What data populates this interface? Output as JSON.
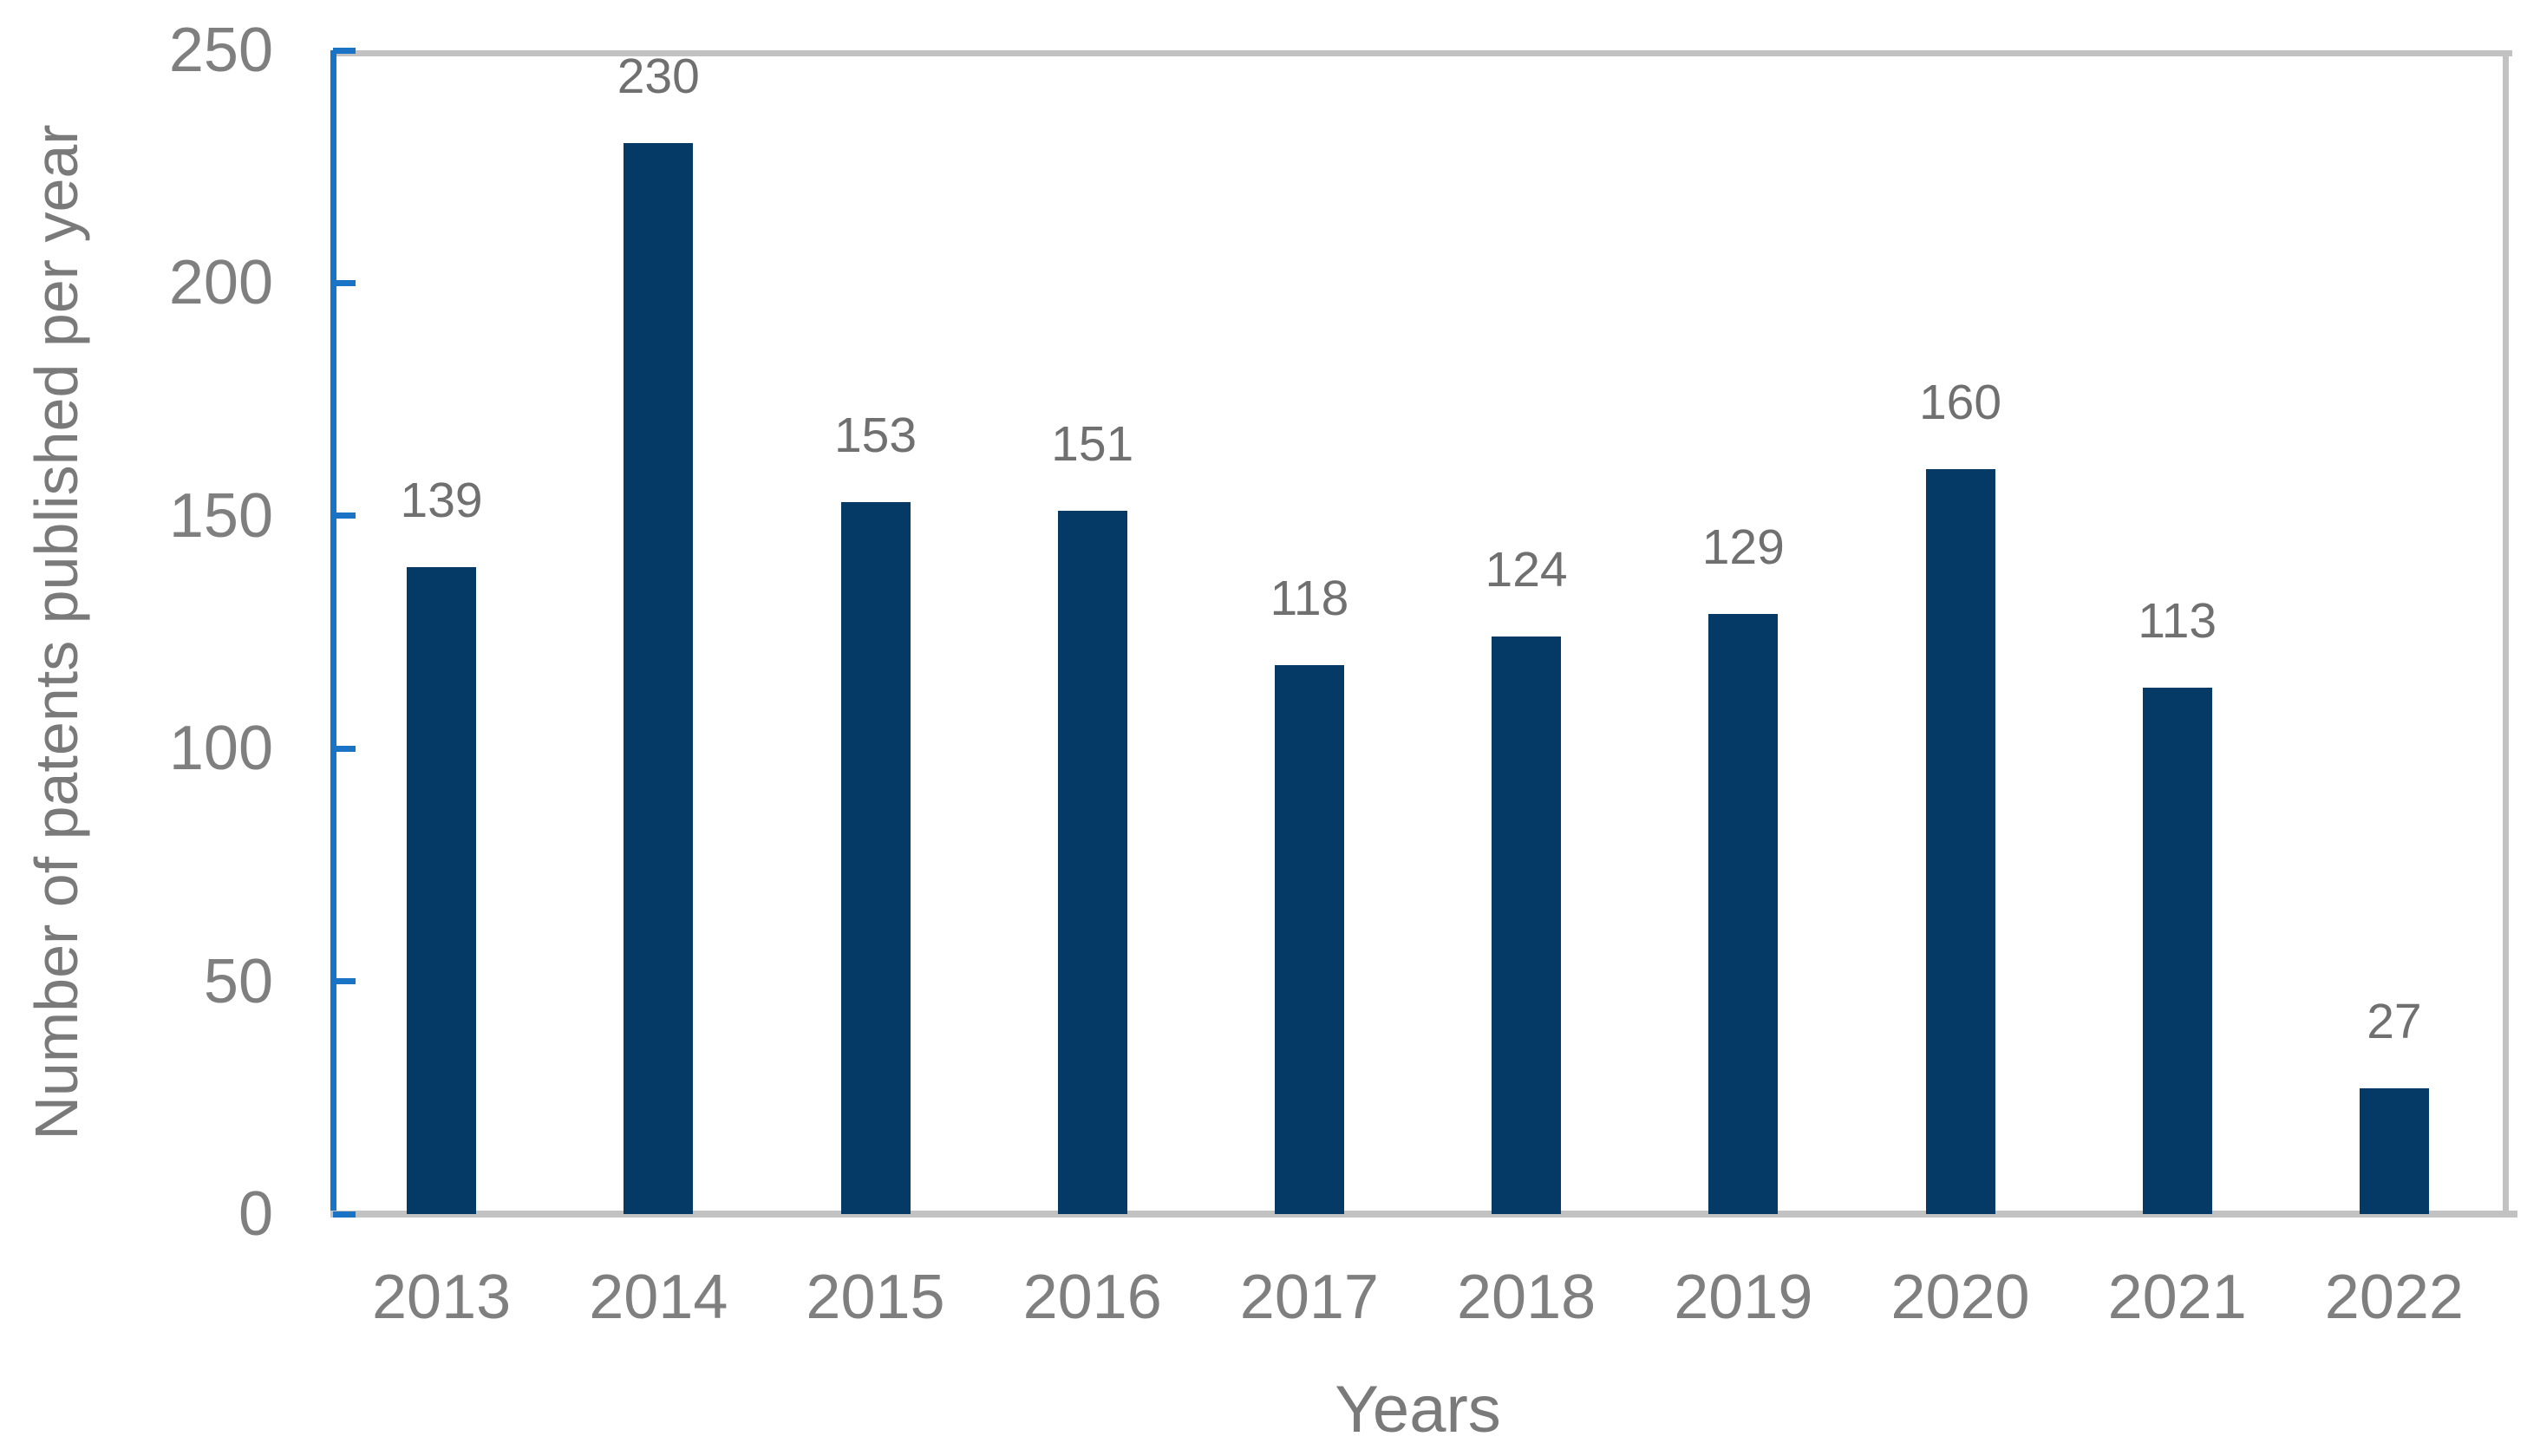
{
  "chart_data": {
    "type": "bar",
    "title": "",
    "categories": [
      "2013",
      "2014",
      "2015",
      "2016",
      "2017",
      "2018",
      "2019",
      "2020",
      "2021",
      "2022"
    ],
    "values": [
      139,
      230,
      153,
      151,
      118,
      124,
      129,
      160,
      113,
      27
    ],
    "xlabel": "Years",
    "ylabel": "Number of patents published per year",
    "ylim": [
      0,
      250
    ],
    "yticks": [
      0,
      50,
      100,
      150,
      200,
      250
    ],
    "grid": false,
    "legend": false,
    "data_labels_shown": true,
    "colors": {
      "bar": "#053A66",
      "axis_line": "#1B73C6",
      "border_lines": "#C2C2C2",
      "tick_text": "#7F7F7F",
      "data_label_text": "#707070",
      "axis_title_text": "#7A7A7A"
    }
  }
}
